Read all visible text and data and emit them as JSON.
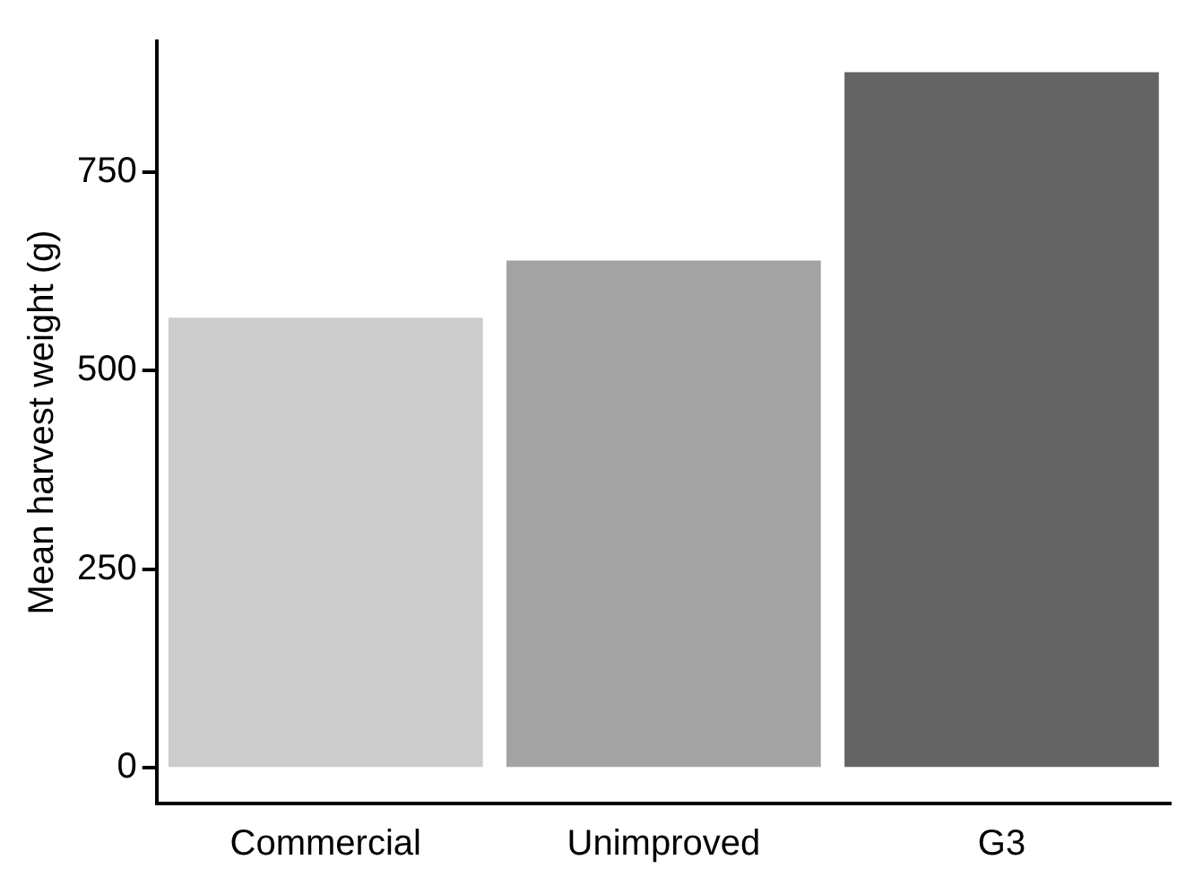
{
  "chart_data": {
    "type": "bar",
    "ylabel": "Mean harvest weight (g)",
    "categories": [
      "Commercial",
      "Unimproved",
      "G3"
    ],
    "values": [
      567,
      639,
      876
    ],
    "colors": [
      "#cccccc",
      "#a3a3a3",
      "#646464"
    ],
    "ylim": [
      -45,
      915
    ],
    "yticks": [
      0,
      250,
      500,
      750
    ],
    "grid": false,
    "legend": false
  }
}
